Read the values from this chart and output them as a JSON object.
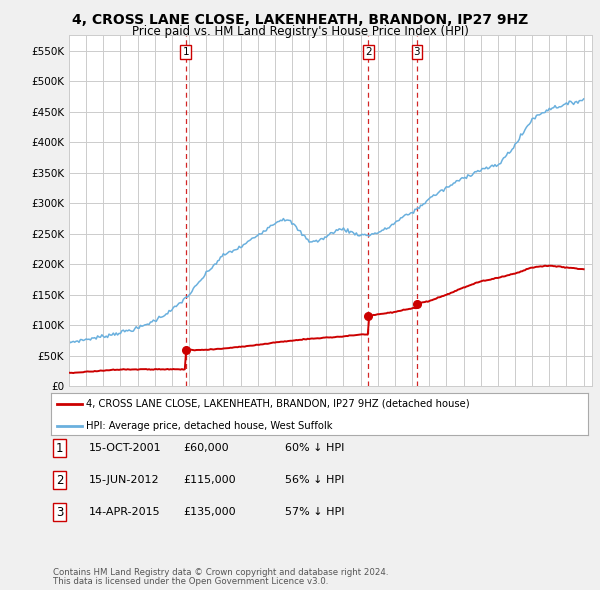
{
  "title": "4, CROSS LANE CLOSE, LAKENHEATH, BRANDON, IP27 9HZ",
  "subtitle": "Price paid vs. HM Land Registry's House Price Index (HPI)",
  "title_fontsize": 10,
  "subtitle_fontsize": 8.5,
  "ylim": [
    0,
    575000
  ],
  "yticks": [
    0,
    50000,
    100000,
    150000,
    200000,
    250000,
    300000,
    350000,
    400000,
    450000,
    500000,
    550000
  ],
  "ytick_labels": [
    "£0",
    "£50K",
    "£100K",
    "£150K",
    "£200K",
    "£250K",
    "£300K",
    "£350K",
    "£400K",
    "£450K",
    "£500K",
    "£550K"
  ],
  "hpi_color": "#6ab0de",
  "price_color": "#cc0000",
  "vline_color": "#cc0000",
  "grid_color": "#cccccc",
  "background_color": "#f0f0f0",
  "plot_bg_color": "#ffffff",
  "transactions": [
    {
      "date": "15-OCT-2001",
      "price": 60000,
      "label": "1",
      "year": 2001.8
    },
    {
      "date": "15-JUN-2012",
      "price": 115000,
      "label": "2",
      "year": 2012.45
    },
    {
      "date": "14-APR-2015",
      "price": 135000,
      "label": "3",
      "year": 2015.28
    }
  ],
  "legend_line1": "4, CROSS LANE CLOSE, LAKENHEATH, BRANDON, IP27 9HZ (detached house)",
  "legend_line2": "HPI: Average price, detached house, West Suffolk",
  "footer1": "Contains HM Land Registry data © Crown copyright and database right 2024.",
  "footer2": "This data is licensed under the Open Government Licence v3.0.",
  "table_rows": [
    [
      "1",
      "15-OCT-2001",
      "£60,000",
      "60% ↓ HPI"
    ],
    [
      "2",
      "15-JUN-2012",
      "£115,000",
      "56% ↓ HPI"
    ],
    [
      "3",
      "14-APR-2015",
      "£135,000",
      "57% ↓ HPI"
    ]
  ],
  "hpi_years": [
    1995.0,
    1995.083,
    1995.167,
    1995.25,
    1995.333,
    1995.417,
    1995.5,
    1995.583,
    1995.667,
    1995.75,
    1995.833,
    1995.917,
    1996.0,
    1996.083,
    1996.167,
    1996.25,
    1996.333,
    1996.417,
    1996.5,
    1996.583,
    1996.667,
    1996.75,
    1996.833,
    1996.917,
    1997.0,
    1997.083,
    1997.167,
    1997.25,
    1997.333,
    1997.417,
    1997.5,
    1997.583,
    1997.667,
    1997.75,
    1997.833,
    1997.917,
    1998.0,
    1998.083,
    1998.167,
    1998.25,
    1998.333,
    1998.417,
    1998.5,
    1998.583,
    1998.667,
    1998.75,
    1998.833,
    1998.917,
    1999.0,
    1999.083,
    1999.167,
    1999.25,
    1999.333,
    1999.417,
    1999.5,
    1999.583,
    1999.667,
    1999.75,
    1999.833,
    1999.917,
    2000.0,
    2000.083,
    2000.167,
    2000.25,
    2000.333,
    2000.417,
    2000.5,
    2000.583,
    2000.667,
    2000.75,
    2000.833,
    2000.917,
    2001.0,
    2001.083,
    2001.167,
    2001.25,
    2001.333,
    2001.417,
    2001.5,
    2001.583,
    2001.667,
    2001.75,
    2001.833,
    2001.917,
    2002.0,
    2002.083,
    2002.167,
    2002.25,
    2002.333,
    2002.417,
    2002.5,
    2002.583,
    2002.667,
    2002.75,
    2002.833,
    2002.917,
    2003.0,
    2003.083,
    2003.167,
    2003.25,
    2003.333,
    2003.417,
    2003.5,
    2003.583,
    2003.667,
    2003.75,
    2003.833,
    2003.917,
    2004.0,
    2004.083,
    2004.167,
    2004.25,
    2004.333,
    2004.417,
    2004.5,
    2004.583,
    2004.667,
    2004.75,
    2004.833,
    2004.917,
    2005.0,
    2005.083,
    2005.167,
    2005.25,
    2005.333,
    2005.417,
    2005.5,
    2005.583,
    2005.667,
    2005.75,
    2005.833,
    2005.917,
    2006.0,
    2006.083,
    2006.167,
    2006.25,
    2006.333,
    2006.417,
    2006.5,
    2006.583,
    2006.667,
    2006.75,
    2006.833,
    2006.917,
    2007.0,
    2007.083,
    2007.167,
    2007.25,
    2007.333,
    2007.417,
    2007.5,
    2007.583,
    2007.667,
    2007.75,
    2007.833,
    2007.917,
    2008.0,
    2008.083,
    2008.167,
    2008.25,
    2008.333,
    2008.417,
    2008.5,
    2008.583,
    2008.667,
    2008.75,
    2008.833,
    2008.917,
    2009.0,
    2009.083,
    2009.167,
    2009.25,
    2009.333,
    2009.417,
    2009.5,
    2009.583,
    2009.667,
    2009.75,
    2009.833,
    2009.917,
    2010.0,
    2010.083,
    2010.167,
    2010.25,
    2010.333,
    2010.417,
    2010.5,
    2010.583,
    2010.667,
    2010.75,
    2010.833,
    2010.917,
    2011.0,
    2011.083,
    2011.167,
    2011.25,
    2011.333,
    2011.417,
    2011.5,
    2011.583,
    2011.667,
    2011.75,
    2011.833,
    2011.917,
    2012.0,
    2012.083,
    2012.167,
    2012.25,
    2012.333,
    2012.417,
    2012.5,
    2012.583,
    2012.667,
    2012.75,
    2012.833,
    2012.917,
    2013.0,
    2013.083,
    2013.167,
    2013.25,
    2013.333,
    2013.417,
    2013.5,
    2013.583,
    2013.667,
    2013.75,
    2013.833,
    2013.917,
    2014.0,
    2014.083,
    2014.167,
    2014.25,
    2014.333,
    2014.417,
    2014.5,
    2014.583,
    2014.667,
    2014.75,
    2014.833,
    2014.917,
    2015.0,
    2015.083,
    2015.167,
    2015.25,
    2015.333,
    2015.417,
    2015.5,
    2015.583,
    2015.667,
    2015.75,
    2015.833,
    2015.917,
    2016.0,
    2016.083,
    2016.167,
    2016.25,
    2016.333,
    2016.417,
    2016.5,
    2016.583,
    2016.667,
    2016.75,
    2016.833,
    2016.917,
    2017.0,
    2017.083,
    2017.167,
    2017.25,
    2017.333,
    2017.417,
    2017.5,
    2017.583,
    2017.667,
    2017.75,
    2017.833,
    2017.917,
    2018.0,
    2018.083,
    2018.167,
    2018.25,
    2018.333,
    2018.417,
    2018.5,
    2018.583,
    2018.667,
    2018.75,
    2018.833,
    2018.917,
    2019.0,
    2019.083,
    2019.167,
    2019.25,
    2019.333,
    2019.417,
    2019.5,
    2019.583,
    2019.667,
    2019.75,
    2019.833,
    2019.917,
    2020.0,
    2020.083,
    2020.167,
    2020.25,
    2020.333,
    2020.417,
    2020.5,
    2020.583,
    2020.667,
    2020.75,
    2020.833,
    2020.917,
    2021.0,
    2021.083,
    2021.167,
    2021.25,
    2021.333,
    2021.417,
    2021.5,
    2021.583,
    2021.667,
    2021.75,
    2021.833,
    2021.917,
    2022.0,
    2022.083,
    2022.167,
    2022.25,
    2022.333,
    2022.417,
    2022.5,
    2022.583,
    2022.667,
    2022.75,
    2022.833,
    2022.917,
    2023.0,
    2023.083,
    2023.167,
    2023.25,
    2023.333,
    2023.417,
    2023.5,
    2023.583,
    2023.667,
    2023.75,
    2023.833,
    2023.917,
    2024.0,
    2024.083,
    2024.167,
    2024.25,
    2024.333,
    2024.417,
    2024.5,
    2024.583,
    2024.667,
    2024.75,
    2024.833,
    2024.917,
    2025.0
  ],
  "hpi_key_points": {
    "1995.0": 72000,
    "1997.0": 82000,
    "1999.0": 95000,
    "2000.0": 108000,
    "2001.0": 125000,
    "2002.0": 150000,
    "2003.0": 185000,
    "2004.0": 215000,
    "2005.0": 228000,
    "2006.0": 248000,
    "2007.0": 268000,
    "2007.5": 275000,
    "2008.0": 268000,
    "2008.5": 252000,
    "2009.0": 238000,
    "2009.5": 238000,
    "2010.0": 245000,
    "2010.5": 255000,
    "2011.0": 258000,
    "2011.5": 252000,
    "2012.0": 248000,
    "2012.5": 248000,
    "2013.0": 252000,
    "2013.5": 258000,
    "2014.0": 268000,
    "2014.5": 278000,
    "2015.0": 285000,
    "2015.5": 295000,
    "2016.0": 308000,
    "2017.0": 325000,
    "2018.0": 342000,
    "2019.0": 355000,
    "2020.0": 362000,
    "2021.0": 395000,
    "2022.0": 438000,
    "2023.0": 455000,
    "2024.0": 462000,
    "2025.0": 470000
  },
  "price_key_points": {
    "1995.0": 22000,
    "1996.0": 24000,
    "1997.0": 26000,
    "1998.0": 28000,
    "1999.0": 28000,
    "2000.0": 28000,
    "2001.0": 28000,
    "2001.79": 28000,
    "2001.81": 60000,
    "2002.0": 60000,
    "2003.0": 60000,
    "2004.0": 62000,
    "2005.0": 65000,
    "2006.0": 68000,
    "2007.0": 72000,
    "2008.0": 75000,
    "2009.0": 78000,
    "2010.0": 80000,
    "2011.0": 82000,
    "2012.0": 85000,
    "2012.44": 85000,
    "2012.46": 115000,
    "2013.0": 118000,
    "2014.0": 122000,
    "2015.0": 128000,
    "2015.27": 128000,
    "2015.29": 135000,
    "2016.0": 140000,
    "2017.0": 150000,
    "2018.0": 162000,
    "2019.0": 172000,
    "2020.0": 178000,
    "2021.0": 185000,
    "2022.0": 195000,
    "2023.0": 198000,
    "2024.0": 195000,
    "2025.0": 192000
  }
}
